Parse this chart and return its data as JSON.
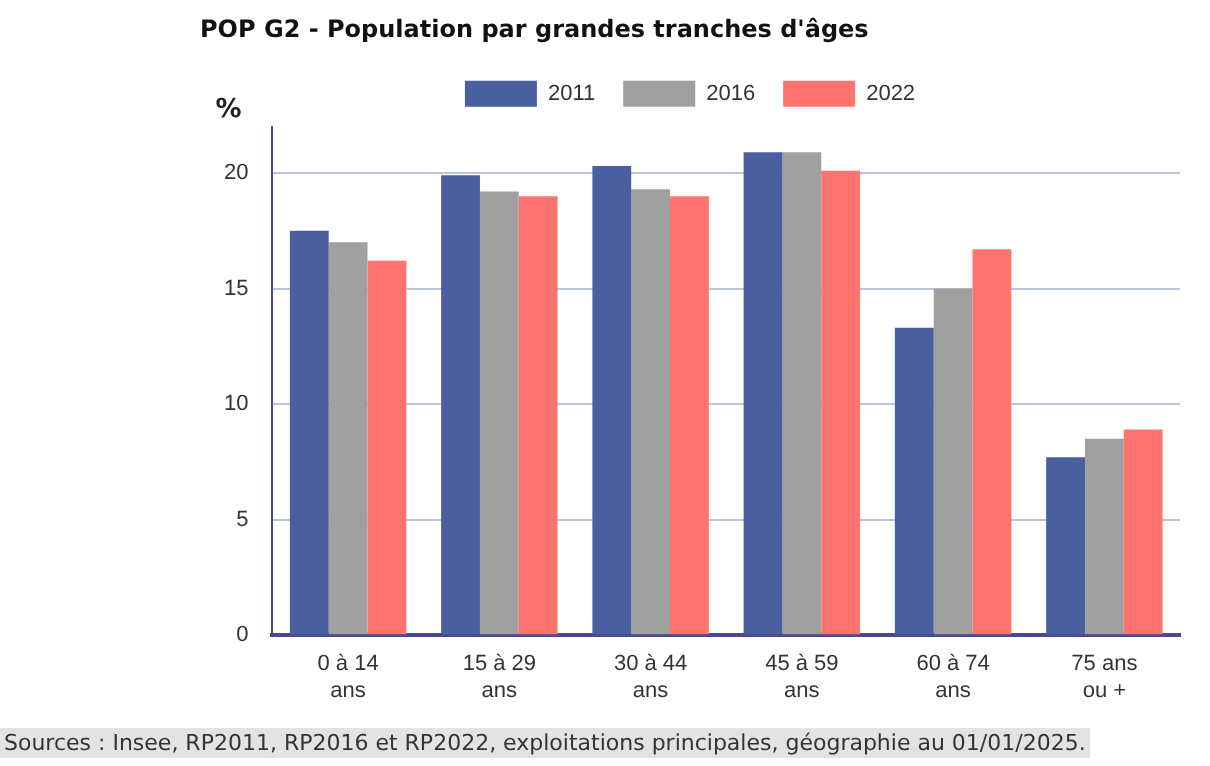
{
  "chart_data": {
    "type": "bar",
    "title": "POP G2 - Population par grandes tranches d'âges",
    "ylabel": "%",
    "categories": [
      "0 à 14\nans",
      "15 à 29\nans",
      "30 à 44\nans",
      "45 à 59\nans",
      "60 à 74\nans",
      "75 ans\nou +"
    ],
    "series": [
      {
        "name": "2011",
        "color": "#4a5fa0",
        "values": [
          17.5,
          19.9,
          20.3,
          20.9,
          13.3,
          7.7
        ]
      },
      {
        "name": "2016",
        "color": "#a0a0a0",
        "values": [
          17.0,
          19.2,
          19.3,
          20.9,
          15.0,
          8.5
        ]
      },
      {
        "name": "2022",
        "color": "#fd7370",
        "values": [
          16.2,
          19.0,
          19.0,
          20.1,
          16.7,
          8.9
        ]
      }
    ],
    "ylim": [
      0,
      22
    ],
    "yticks": [
      0,
      5,
      10,
      15,
      20
    ],
    "grid": "y",
    "legend": "top",
    "annotations": [
      "Sources : Insee, RP2011, RP2016 et RP2022, exploitations principales, géographie au 01/01/2025."
    ]
  }
}
